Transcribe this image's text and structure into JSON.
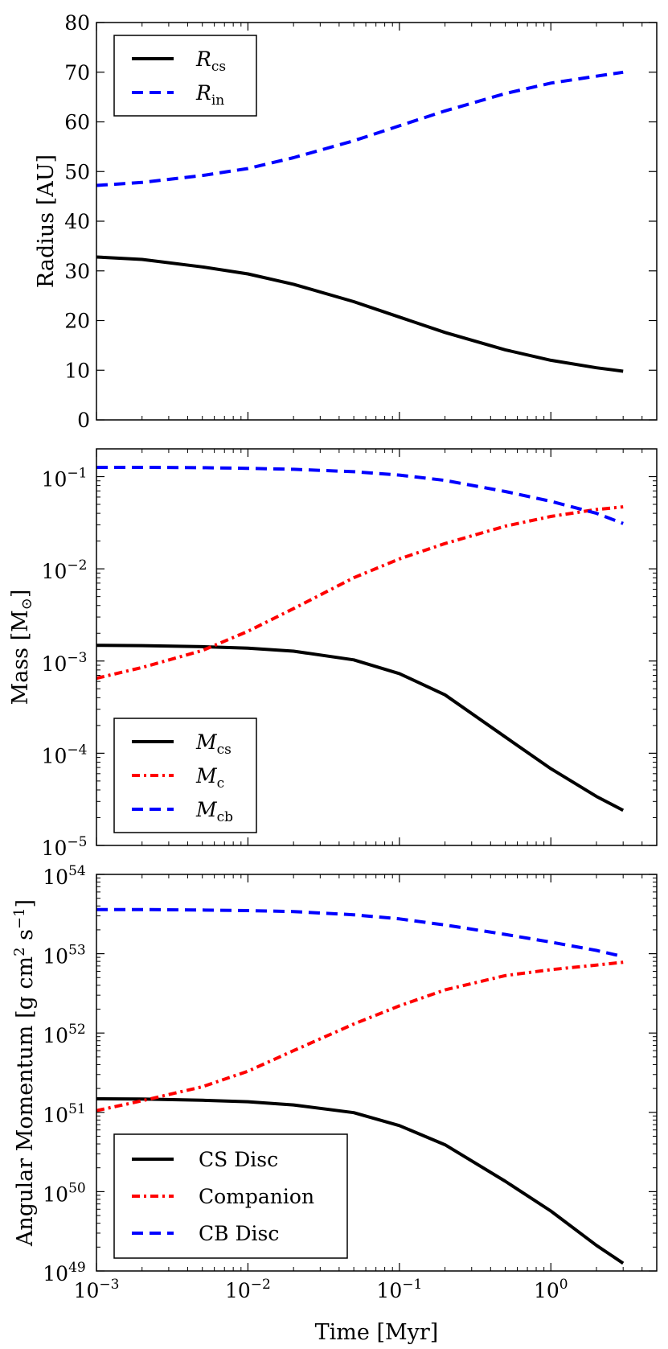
{
  "chart_data": [
    {
      "type": "line",
      "xscale": "log",
      "yscale": "linear",
      "xlim": [
        0.001,
        5
      ],
      "ylim": [
        0,
        80
      ],
      "yticks": [
        0,
        10,
        20,
        30,
        40,
        50,
        60,
        70,
        80
      ],
      "ytick_labels": [
        "0",
        "10",
        "20",
        "30",
        "40",
        "50",
        "60",
        "70",
        "80"
      ],
      "xticks": [
        0.001,
        0.01,
        0.1,
        1
      ],
      "show_x_tick_labels": false,
      "xlabel": "",
      "ylabel": "Radius [AU]",
      "legend": {
        "placement": "top-left"
      },
      "x": [
        0.001,
        0.002,
        0.005,
        0.01,
        0.02,
        0.05,
        0.1,
        0.2,
        0.5,
        1,
        2,
        3
      ],
      "series": [
        {
          "name": "R",
          "sub": "cs",
          "style": "solid",
          "color": "#000000",
          "values": [
            32.8,
            32.3,
            30.8,
            29.4,
            27.3,
            23.8,
            20.7,
            17.6,
            14.1,
            12.0,
            10.5,
            9.8
          ]
        },
        {
          "name": "R",
          "sub": "in",
          "style": "dashed",
          "color": "#0000ff",
          "values": [
            47.2,
            47.8,
            49.2,
            50.6,
            52.8,
            56.2,
            59.2,
            62.2,
            65.7,
            67.8,
            69.2,
            70.0
          ]
        }
      ]
    },
    {
      "type": "line",
      "xscale": "log",
      "yscale": "log",
      "xlim": [
        0.001,
        5
      ],
      "ylim": [
        1e-05,
        0.2
      ],
      "yticks": [
        1e-05,
        0.0001,
        0.001,
        0.01,
        0.1
      ],
      "ytick_labels": [
        [
          "10",
          "−5"
        ],
        [
          "10",
          "−4"
        ],
        [
          "10",
          "−3"
        ],
        [
          "10",
          "−2"
        ],
        [
          "10",
          "−1"
        ]
      ],
      "xticks": [
        0.001,
        0.01,
        0.1,
        1
      ],
      "show_x_tick_labels": false,
      "xlabel": "",
      "ylabel": "Mass [M",
      "ylabel_symbol": "⊙",
      "ylabel_end": "]",
      "legend": {
        "placement": "bottom-left"
      },
      "x": [
        0.001,
        0.002,
        0.005,
        0.01,
        0.02,
        0.05,
        0.1,
        0.2,
        0.5,
        1,
        2,
        3
      ],
      "series": [
        {
          "name": "M",
          "sub": "cs",
          "style": "solid",
          "color": "#000000",
          "values": [
            0.00148,
            0.00147,
            0.00143,
            0.00138,
            0.00128,
            0.00103,
            0.00073,
            0.00043,
            0.00015,
            6.8e-05,
            3.4e-05,
            2.4e-05
          ]
        },
        {
          "name": "M",
          "sub": "c",
          "style": "dashdot",
          "color": "#ff0000",
          "values": [
            0.00065,
            0.00085,
            0.0013,
            0.0021,
            0.0037,
            0.008,
            0.0128,
            0.0188,
            0.029,
            0.037,
            0.044,
            0.047
          ]
        },
        {
          "name": "M",
          "sub": "cb",
          "style": "dashed",
          "color": "#0000ff",
          "values": [
            0.126,
            0.126,
            0.125,
            0.123,
            0.12,
            0.113,
            0.104,
            0.091,
            0.069,
            0.054,
            0.04,
            0.031
          ]
        }
      ]
    },
    {
      "type": "line",
      "xscale": "log",
      "yscale": "log",
      "xlim": [
        0.001,
        5
      ],
      "ylim": [
        1e+49,
        1e+54
      ],
      "yticks": [
        1e+49,
        1e+50,
        1e+51,
        1e+52,
        1e+53,
        1e+54
      ],
      "ytick_labels": [
        [
          "10",
          "49"
        ],
        [
          "10",
          "50"
        ],
        [
          "10",
          "51"
        ],
        [
          "10",
          "52"
        ],
        [
          "10",
          "53"
        ],
        [
          "10",
          "54"
        ]
      ],
      "xticks": [
        0.001,
        0.01,
        0.1,
        1
      ],
      "xtick_labels": [
        [
          "10",
          "−3"
        ],
        [
          "10",
          "−2"
        ],
        [
          "10",
          "−1"
        ],
        [
          "10",
          "0"
        ]
      ],
      "show_x_tick_labels": true,
      "xlabel": "Time [Myr]",
      "ylabel": "Angular Momentum [g cm",
      "ylabel_sup1": "2",
      "ylabel_mid": " s",
      "ylabel_sup2": "−1",
      "ylabel_end": "]",
      "legend": {
        "placement": "bottom-left"
      },
      "x": [
        0.001,
        0.002,
        0.005,
        0.01,
        0.02,
        0.05,
        0.1,
        0.2,
        0.5,
        1,
        2,
        3
      ],
      "series": [
        {
          "name": "CS Disc",
          "style": "solid",
          "color": "#000000",
          "values": [
            1.48e+51,
            1.47e+51,
            1.42e+51,
            1.36e+51,
            1.24e+51,
            9.9e+50,
            6.8e+50,
            3.9e+50,
            1.35e+50,
            5.7e+49,
            2.1e+49,
            1.25e+49
          ]
        },
        {
          "name": "Companion",
          "style": "dashdot",
          "color": "#ff0000",
          "values": [
            1.05e+51,
            1.4e+51,
            2.1e+51,
            3.3e+51,
            6e+51,
            1.3e+52,
            2.2e+52,
            3.5e+52,
            5.3e+52,
            6.3e+52,
            7.2e+52,
            7.8e+52
          ]
        },
        {
          "name": "CB Disc",
          "style": "dashed",
          "color": "#0000ff",
          "values": [
            3.6e+53,
            3.6e+53,
            3.55e+53,
            3.5e+53,
            3.4e+53,
            3.1e+53,
            2.75e+53,
            2.3e+53,
            1.75e+53,
            1.4e+53,
            1.1e+53,
            9.2e+52
          ]
        }
      ]
    }
  ]
}
